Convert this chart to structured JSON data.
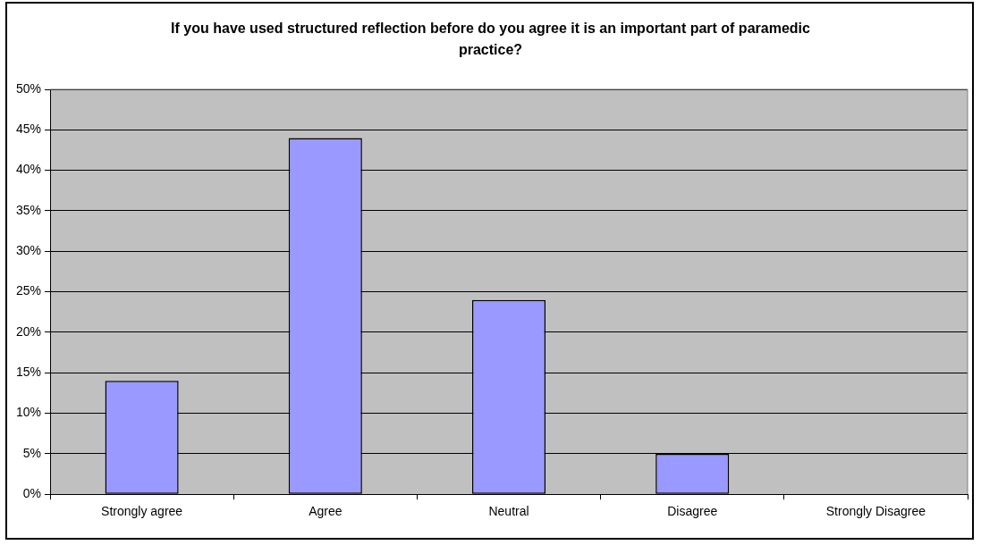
{
  "chart_data": {
    "type": "bar",
    "title": "If you have used structured reflection before do you agree it is an important part of paramedic practice?",
    "categories": [
      "Strongly agree",
      "Agree",
      "Neutral",
      "Disagree",
      "Strongly Disagree"
    ],
    "values": [
      14,
      44,
      24,
      5,
      0
    ],
    "color": "#9999ff",
    "ylim": [
      0,
      50
    ],
    "yticks": [
      {
        "value": 0,
        "label": "0%"
      },
      {
        "value": 5,
        "label": "5%"
      },
      {
        "value": 10,
        "label": "10%"
      },
      {
        "value": 15,
        "label": "15%"
      },
      {
        "value": 20,
        "label": "20%"
      },
      {
        "value": 25,
        "label": "25%"
      },
      {
        "value": 30,
        "label": "30%"
      },
      {
        "value": 35,
        "label": "35%"
      },
      {
        "value": 40,
        "label": "40%"
      },
      {
        "value": 45,
        "label": "45%"
      },
      {
        "value": 50,
        "label": "50%"
      }
    ],
    "grid": "y",
    "legend": false
  }
}
